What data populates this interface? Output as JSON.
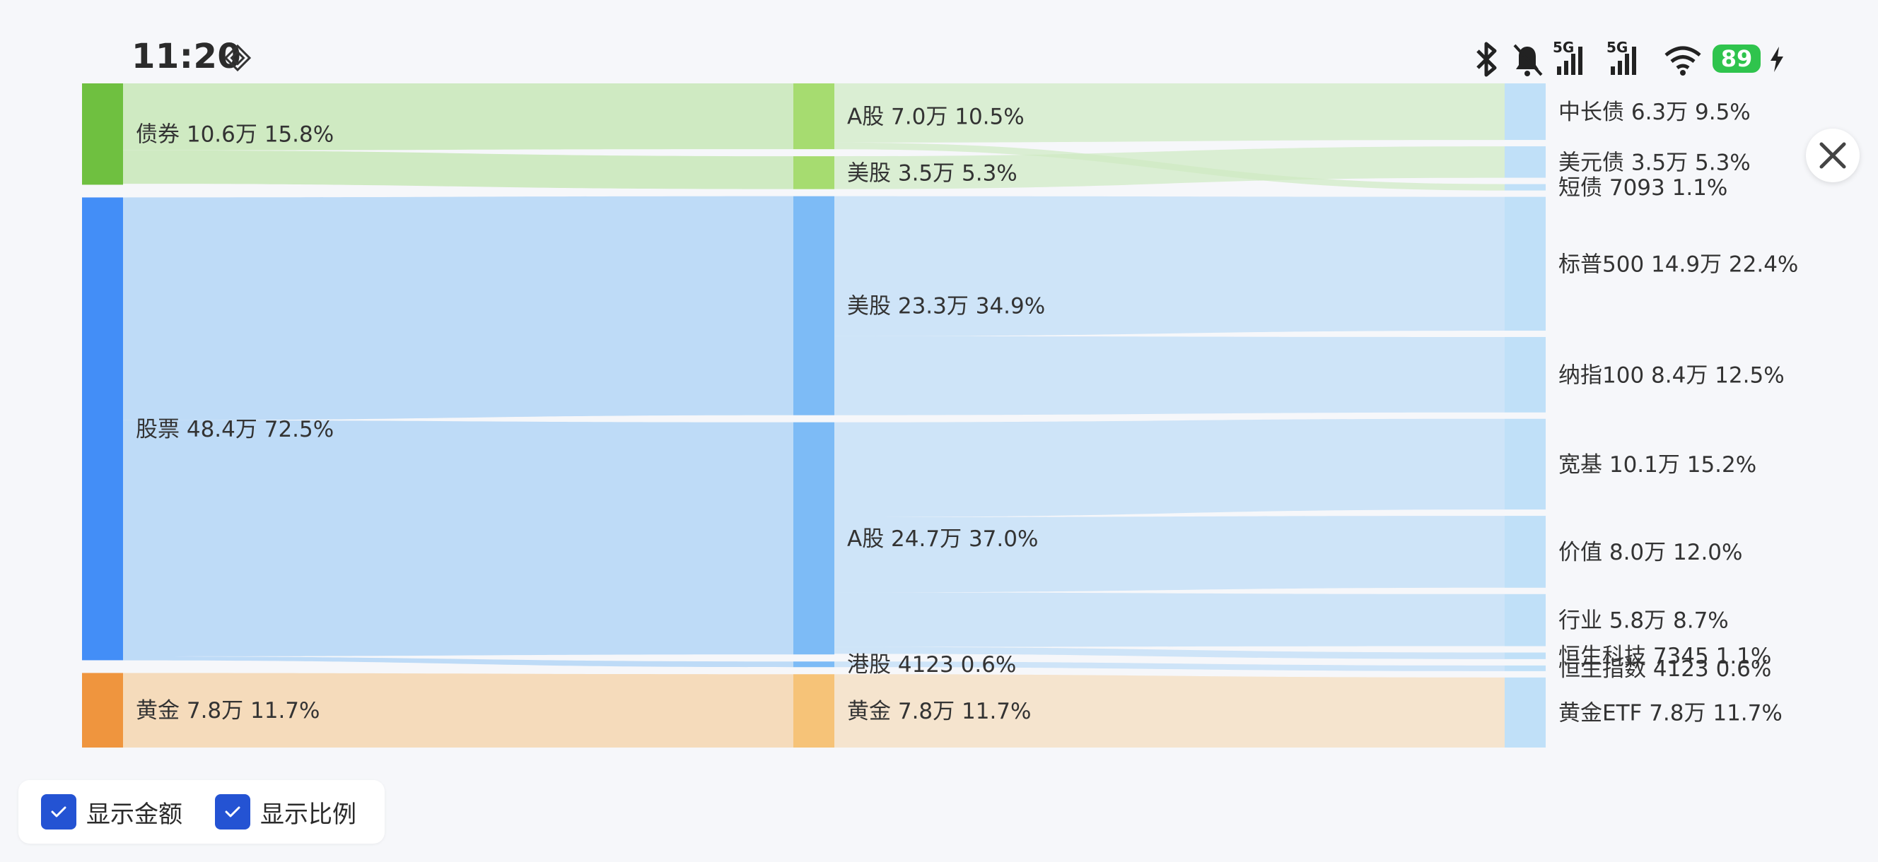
{
  "status_bar": {
    "time": "11:20",
    "battery": "89",
    "network_labels": [
      "5G",
      "5G"
    ]
  },
  "chart_data": {
    "type": "sankey",
    "colors": {
      "bond": "#6fc040",
      "bond_mid": "#a6dc70",
      "bond_link": "#cfeac2",
      "stock": "#438ef7",
      "stock_mid": "#7dbbf6",
      "stock_link": "#bedbf7",
      "leaf": "#c0e0f8",
      "gold": "#ef953e",
      "gold_mid": "#f6c378",
      "gold_link": "#f5dbbb"
    },
    "nodes": [
      {
        "id": "bond",
        "label": "债券 10.6万 15.8%",
        "value": 10.6,
        "column": 0
      },
      {
        "id": "stock",
        "label": "股票 48.4万 72.5%",
        "value": 48.4,
        "column": 0
      },
      {
        "id": "gold",
        "label": "黄金 7.8万 11.7%",
        "value": 7.8,
        "column": 0
      },
      {
        "id": "bond_a",
        "label": "A股 7.0万 10.5%",
        "value": 7.0,
        "column": 1
      },
      {
        "id": "bond_us",
        "label": "美股 3.5万 5.3%",
        "value": 3.5,
        "column": 1
      },
      {
        "id": "stock_us",
        "label": "美股 23.3万 34.9%",
        "value": 23.3,
        "column": 1
      },
      {
        "id": "stock_a",
        "label": "A股 24.7万 37.0%",
        "value": 24.7,
        "column": 1
      },
      {
        "id": "stock_hk",
        "label": "港股 4123 0.6%",
        "value": 0.4123,
        "column": 1
      },
      {
        "id": "gold_mid",
        "label": "黄金 7.8万 11.7%",
        "value": 7.8,
        "column": 1
      },
      {
        "id": "long_bond",
        "label": "中长债 6.3万 9.5%",
        "value": 6.3,
        "column": 2
      },
      {
        "id": "usd_bond",
        "label": "美元债 3.5万 5.3%",
        "value": 3.5,
        "column": 2
      },
      {
        "id": "short_bond",
        "label": "短债 7093 1.1%",
        "value": 0.7093,
        "column": 2
      },
      {
        "id": "sp500",
        "label": "标普500 14.9万 22.4%",
        "value": 14.9,
        "column": 2
      },
      {
        "id": "ndx100",
        "label": "纳指100 8.4万 12.5%",
        "value": 8.4,
        "column": 2
      },
      {
        "id": "broad",
        "label": "宽基 10.1万 15.2%",
        "value": 10.1,
        "column": 2
      },
      {
        "id": "value",
        "label": "价值 8.0万 12.0%",
        "value": 8.0,
        "column": 2
      },
      {
        "id": "sector",
        "label": "行业 5.8万 8.7%",
        "value": 5.8,
        "column": 2
      },
      {
        "id": "hstech",
        "label": "恒生科技 7345 1.1%",
        "value": 0.7345,
        "column": 2
      },
      {
        "id": "hsi",
        "label": "恒生指数 4123 0.6%",
        "value": 0.4123,
        "column": 2
      },
      {
        "id": "gold_etf",
        "label": "黄金ETF 7.8万 11.7%",
        "value": 7.8,
        "column": 2
      }
    ],
    "links": [
      {
        "source": "bond",
        "target": "bond_a",
        "value": 7.0
      },
      {
        "source": "bond",
        "target": "bond_us",
        "value": 3.5
      },
      {
        "source": "stock",
        "target": "stock_us",
        "value": 23.3
      },
      {
        "source": "stock",
        "target": "stock_a",
        "value": 24.7
      },
      {
        "source": "stock",
        "target": "stock_hk",
        "value": 0.4123
      },
      {
        "source": "gold",
        "target": "gold_mid",
        "value": 7.8
      },
      {
        "source": "bond_a",
        "target": "long_bond",
        "value": 6.3
      },
      {
        "source": "bond_a",
        "target": "short_bond",
        "value": 0.7093
      },
      {
        "source": "bond_us",
        "target": "usd_bond",
        "value": 3.5
      },
      {
        "source": "stock_us",
        "target": "sp500",
        "value": 14.9
      },
      {
        "source": "stock_us",
        "target": "ndx100",
        "value": 8.4
      },
      {
        "source": "stock_a",
        "target": "broad",
        "value": 10.1
      },
      {
        "source": "stock_a",
        "target": "value",
        "value": 8.0
      },
      {
        "source": "stock_a",
        "target": "sector",
        "value": 5.8
      },
      {
        "source": "stock_a",
        "target": "hstech",
        "value": 0.7345
      },
      {
        "source": "stock_hk",
        "target": "hsi",
        "value": 0.4123
      },
      {
        "source": "gold_mid",
        "target": "gold_etf",
        "value": 7.8
      }
    ]
  },
  "controls": {
    "show_amount": {
      "label": "显示金额",
      "checked": true
    },
    "show_ratio": {
      "label": "显示比例",
      "checked": true
    }
  }
}
